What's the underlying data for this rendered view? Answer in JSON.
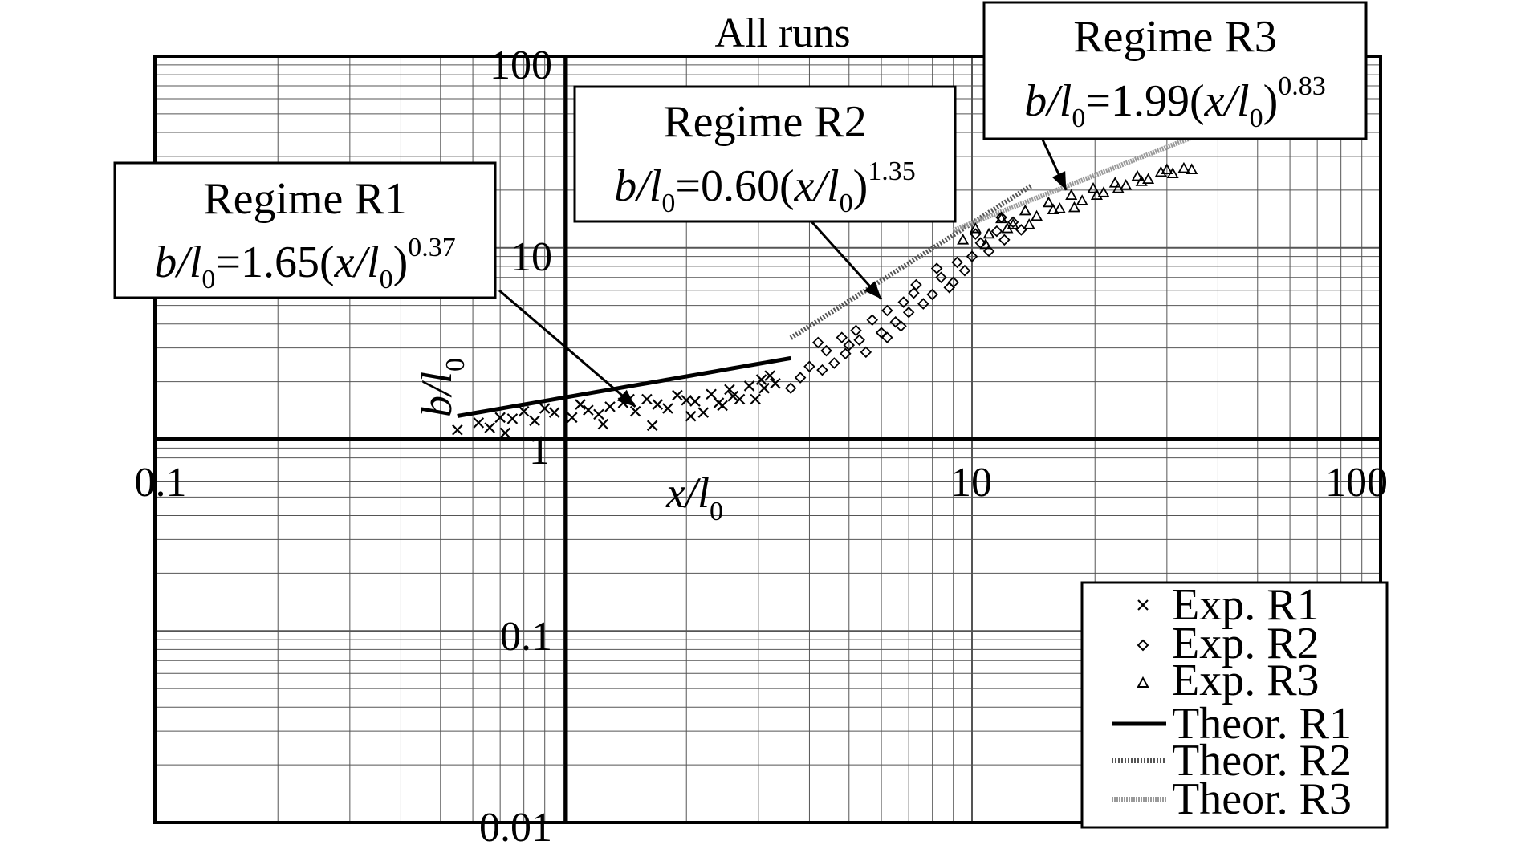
{
  "chart_data": {
    "type": "scatter",
    "title": "All runs",
    "x_scale": "log",
    "y_scale": "log",
    "xlim": [
      0.1,
      100
    ],
    "ylim": [
      0.01,
      100
    ],
    "grid": true,
    "legend_position": "bottom-right",
    "xlabel": {
      "main": "x/l",
      "sub": "0"
    },
    "ylabel": {
      "main": "b/l",
      "sub": "0"
    },
    "x_ticks": [
      "0.1",
      "1",
      "10",
      "100"
    ],
    "y_ticks": [
      "0.01",
      "0.1",
      "1",
      "10",
      "100"
    ],
    "series": [
      {
        "name": "Exp. R1",
        "marker": "cross",
        "points": [
          [
            0.55,
            1.12
          ],
          [
            0.62,
            1.22
          ],
          [
            0.66,
            1.15
          ],
          [
            0.7,
            1.3
          ],
          [
            0.75,
            1.28
          ],
          [
            0.8,
            1.4
          ],
          [
            0.72,
            1.08
          ],
          [
            0.85,
            1.25
          ],
          [
            0.9,
            1.45
          ],
          [
            0.95,
            1.38
          ],
          [
            1.05,
            1.3
          ],
          [
            1.1,
            1.52
          ],
          [
            1.15,
            1.42
          ],
          [
            1.22,
            1.35
          ],
          [
            1.3,
            1.48
          ],
          [
            1.4,
            1.55
          ],
          [
            1.5,
            1.4
          ],
          [
            1.6,
            1.62
          ],
          [
            1.7,
            1.52
          ],
          [
            1.8,
            1.45
          ],
          [
            1.9,
            1.7
          ],
          [
            2.0,
            1.6
          ],
          [
            2.1,
            1.58
          ],
          [
            2.2,
            1.38
          ],
          [
            2.3,
            1.72
          ],
          [
            2.45,
            1.5
          ],
          [
            2.55,
            1.82
          ],
          [
            2.7,
            1.62
          ],
          [
            2.85,
            1.9
          ],
          [
            2.95,
            1.62
          ],
          [
            3.05,
            2.05
          ],
          [
            3.2,
            2.15
          ],
          [
            1.25,
            1.2
          ],
          [
            1.65,
            1.18
          ],
          [
            2.05,
            1.32
          ],
          [
            2.4,
            1.55
          ],
          [
            2.6,
            1.68
          ],
          [
            3.1,
            1.85
          ],
          [
            3.3,
            1.96
          ],
          [
            1.45,
            1.62
          ]
        ]
      },
      {
        "name": "Exp. R2",
        "marker": "diamond",
        "points": [
          [
            3.6,
            1.85
          ],
          [
            3.8,
            2.1
          ],
          [
            4.0,
            2.4
          ],
          [
            4.2,
            3.2
          ],
          [
            4.4,
            2.9
          ],
          [
            4.6,
            2.5
          ],
          [
            4.8,
            3.4
          ],
          [
            5.0,
            3.1
          ],
          [
            5.2,
            3.7
          ],
          [
            5.5,
            2.85
          ],
          [
            5.7,
            4.2
          ],
          [
            6.0,
            3.6
          ],
          [
            6.2,
            4.7
          ],
          [
            6.5,
            4.1
          ],
          [
            6.8,
            5.2
          ],
          [
            7.0,
            4.6
          ],
          [
            7.3,
            6.4
          ],
          [
            7.6,
            5.1
          ],
          [
            8.0,
            5.7
          ],
          [
            8.4,
            7.0
          ],
          [
            8.8,
            6.2
          ],
          [
            9.2,
            8.4
          ],
          [
            9.6,
            7.6
          ],
          [
            10.0,
            9.0
          ],
          [
            10.5,
            10.6
          ],
          [
            11.0,
            9.6
          ],
          [
            11.5,
            12.2
          ],
          [
            12.0,
            11.0
          ],
          [
            12.6,
            13.6
          ],
          [
            13.2,
            12.4
          ],
          [
            4.3,
            2.3
          ],
          [
            5.3,
            3.3
          ],
          [
            6.2,
            3.4
          ],
          [
            7.2,
            5.8
          ],
          [
            8.2,
            7.8
          ],
          [
            9.0,
            6.6
          ],
          [
            10.2,
            11.8
          ],
          [
            11.8,
            14.4
          ],
          [
            6.7,
            3.9
          ],
          [
            4.9,
            2.8
          ]
        ]
      },
      {
        "name": "Exp. R3",
        "marker": "triangle",
        "points": [
          [
            9.5,
            11.0
          ],
          [
            10.2,
            12.6
          ],
          [
            11.0,
            11.8
          ],
          [
            11.8,
            14.2
          ],
          [
            12.6,
            13.2
          ],
          [
            13.5,
            15.6
          ],
          [
            14.4,
            14.6
          ],
          [
            15.4,
            17.2
          ],
          [
            16.4,
            16.0
          ],
          [
            17.5,
            18.8
          ],
          [
            18.6,
            17.6
          ],
          [
            19.8,
            20.4
          ],
          [
            21.0,
            19.4
          ],
          [
            22.4,
            21.8
          ],
          [
            23.8,
            21.2
          ],
          [
            25.4,
            23.6
          ],
          [
            27.0,
            22.8
          ],
          [
            29.0,
            24.8
          ],
          [
            31.0,
            24.4
          ],
          [
            33.0,
            26.0
          ],
          [
            10.8,
            10.4
          ],
          [
            12.2,
            12.6
          ],
          [
            13.8,
            13.2
          ],
          [
            15.8,
            15.8
          ],
          [
            17.8,
            16.2
          ],
          [
            20.2,
            18.8
          ],
          [
            22.8,
            20.4
          ],
          [
            26.0,
            22.2
          ],
          [
            30.0,
            25.6
          ],
          [
            34.5,
            25.6
          ]
        ]
      },
      {
        "name": "Theor. R1",
        "line": {
          "a": 1.65,
          "p": 0.37,
          "x_range": [
            0.55,
            3.6
          ]
        }
      },
      {
        "name": "Theor. R2",
        "line": {
          "a": 0.6,
          "p": 1.35,
          "x_range": [
            3.6,
            14.0
          ]
        }
      },
      {
        "name": "Theor. R3",
        "line": {
          "a": 1.99,
          "p": 0.83,
          "x_range": [
            9.0,
            35.0
          ]
        }
      }
    ],
    "annotations": [
      {
        "id": "r1",
        "title": "Regime R1",
        "coef": "1.65",
        "exp": "0.37",
        "arrow_to": [
          1.5,
          1.48
        ]
      },
      {
        "id": "r2",
        "title": "Regime R2",
        "coef": "0.60",
        "exp": "1.35",
        "arrow_to": [
          6.0,
          5.4
        ]
      },
      {
        "id": "r3",
        "title": "Regime R3",
        "coef": "1.99",
        "exp": "0.83",
        "arrow_to": [
          17.0,
          20.0
        ]
      }
    ],
    "colors": {
      "r1": "#000000",
      "r2": "#555555",
      "r3": "#9a9a9a",
      "grid": "#555555"
    }
  }
}
